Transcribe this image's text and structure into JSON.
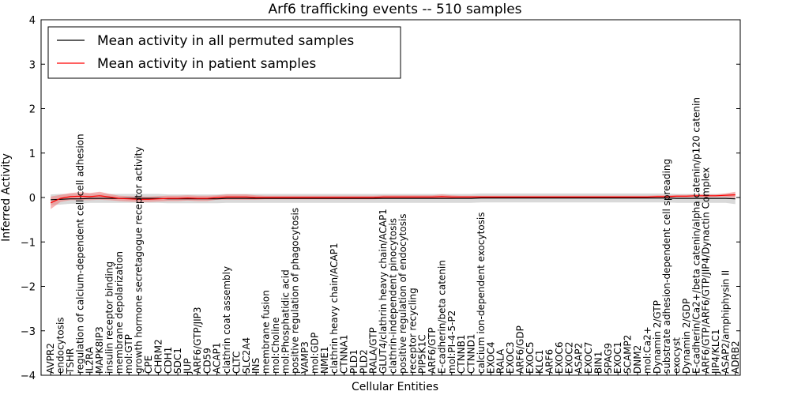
{
  "chart_data": {
    "type": "line",
    "title": "Arf6 trafficking events -- 510 samples",
    "xlabel": "Cellular Entities",
    "ylabel": "Inferred Activity",
    "ylim": [
      -4,
      4
    ],
    "yticks": [
      "−4",
      "−3",
      "−2",
      "−1",
      "0",
      "1",
      "2",
      "3",
      "4"
    ],
    "grid": false,
    "legend_position": "top-left",
    "categories": [
      "AVPR2",
      "endocytosis",
      "TSHR",
      "regulation of calcium-dependent cell-cell adhesion",
      "IL2RA",
      "MAPK8IP3",
      "insulin receptor binding",
      "membrane depolarization",
      "mol:GTP",
      "growth hormone secretagogue receptor activity",
      "CPE",
      "CHRM2",
      "CDH1",
      "SDC1",
      "JUP",
      "ARF6/GTP/JIP3",
      "CD59",
      "ACAP1",
      "clathrin coat assembly",
      "CLTC",
      "SLC2A4",
      "INS",
      "membrane fusion",
      "mol:Choline",
      "mol:Phosphatidic acid",
      "positive regulation of phagocytosis",
      "VAMP3",
      "mol:GDP",
      "NME1",
      "clathrin heavy chain/ACAP1",
      "CTNNA1",
      "PLD1",
      "PLD2",
      "RALA/GTP",
      "GLUT4/clathrin heavy chain/ACAP1",
      "clathrin-independent pinocytosis",
      "positive regulation of endocytosis",
      "receptor recycling",
      "PIP5K1C",
      "ARF6/GTP",
      "E-cadherin/beta catenin",
      "mol:PI-4-5-P2",
      "CTNNB1",
      "CTNND1",
      "calcium ion-dependent exocytosis",
      "EXOC4",
      "RALA",
      "EXOC3",
      "ARF6/GDP",
      "EXOC5",
      "KLC1",
      "ARF6",
      "EXOC6",
      "EXOC2",
      "ASAP2",
      "EXOC7",
      "BIN1",
      "SPAG9",
      "EXOC1",
      "SCAMP2",
      "DNM2",
      "mol:Ca2+",
      "Dynamin 2/GTP",
      "substrate adhesion-dependent cell spreading",
      "exocyst",
      "Dynamin 2/GDP",
      "E-cadherin/Ca2+/beta catenin/alpha catenin/p120 catenin",
      "ARF6/GTP/ARF6/GTP/JIP4/Dynactin Complex",
      "JIP4/KLC1",
      "ASAP2/amphiphysin II",
      "ADRB2"
    ],
    "series": [
      {
        "name": "Mean activity in all permuted samples",
        "color": "#000000",
        "band_color": "#cccccc",
        "values": [
          -0.05,
          -0.04,
          -0.03,
          -0.03,
          -0.02,
          -0.02,
          -0.02,
          -0.02,
          -0.02,
          -0.02,
          -0.02,
          -0.02,
          -0.03,
          -0.03,
          -0.03,
          -0.03,
          -0.03,
          -0.03,
          -0.02,
          -0.02,
          -0.02,
          -0.02,
          -0.02,
          -0.02,
          -0.02,
          -0.02,
          -0.02,
          -0.02,
          -0.02,
          -0.02,
          -0.02,
          -0.02,
          -0.02,
          -0.02,
          -0.02,
          -0.02,
          -0.02,
          -0.02,
          -0.02,
          -0.02,
          -0.02,
          -0.02,
          -0.02,
          -0.02,
          -0.01,
          -0.01,
          -0.01,
          -0.01,
          -0.01,
          -0.01,
          -0.01,
          -0.01,
          -0.01,
          -0.01,
          -0.01,
          -0.01,
          -0.01,
          -0.01,
          -0.01,
          -0.01,
          -0.01,
          -0.01,
          -0.01,
          -0.01,
          -0.02,
          -0.02,
          -0.02,
          -0.02,
          -0.02,
          -0.02,
          -0.03
        ],
        "band": [
          0.12,
          0.12,
          0.11,
          0.11,
          0.1,
          0.1,
          0.1,
          0.1,
          0.1,
          0.1,
          0.1,
          0.1,
          0.1,
          0.1,
          0.1,
          0.1,
          0.1,
          0.1,
          0.1,
          0.1,
          0.1,
          0.1,
          0.1,
          0.1,
          0.1,
          0.1,
          0.1,
          0.1,
          0.1,
          0.1,
          0.1,
          0.1,
          0.1,
          0.1,
          0.1,
          0.1,
          0.1,
          0.1,
          0.1,
          0.1,
          0.1,
          0.1,
          0.1,
          0.1,
          0.1,
          0.1,
          0.1,
          0.1,
          0.1,
          0.1,
          0.1,
          0.1,
          0.1,
          0.1,
          0.1,
          0.1,
          0.1,
          0.1,
          0.1,
          0.1,
          0.1,
          0.1,
          0.1,
          0.1,
          0.1,
          0.1,
          0.1,
          0.1,
          0.1,
          0.1,
          0.12
        ]
      },
      {
        "name": "Mean activity in patient samples",
        "color": "#ff0000",
        "band_color": "#f08080",
        "values": [
          -0.12,
          -0.02,
          0.02,
          0.03,
          0.02,
          0.04,
          0.01,
          -0.02,
          -0.03,
          -0.04,
          -0.04,
          -0.03,
          -0.02,
          -0.02,
          -0.01,
          -0.02,
          -0.02,
          0.0,
          0.01,
          0.01,
          0.01,
          0.0,
          0.0,
          0.0,
          0.0,
          0.0,
          0.0,
          0.0,
          0.0,
          0.0,
          0.0,
          0.0,
          0.0,
          0.0,
          0.01,
          0.01,
          0.01,
          0.01,
          0.01,
          0.01,
          0.02,
          0.01,
          0.01,
          0.01,
          0.01,
          0.01,
          0.01,
          0.01,
          0.01,
          0.01,
          0.01,
          0.01,
          0.01,
          0.01,
          0.01,
          0.01,
          0.01,
          0.01,
          0.01,
          0.01,
          0.01,
          0.01,
          0.02,
          0.02,
          0.03,
          0.03,
          0.04,
          0.04,
          0.04,
          0.05,
          0.06
        ],
        "band": [
          0.14,
          0.08,
          0.08,
          0.09,
          0.08,
          0.09,
          0.07,
          0.06,
          0.06,
          0.06,
          0.06,
          0.06,
          0.06,
          0.06,
          0.06,
          0.06,
          0.06,
          0.05,
          0.06,
          0.06,
          0.06,
          0.05,
          0.04,
          0.04,
          0.04,
          0.04,
          0.04,
          0.04,
          0.04,
          0.04,
          0.04,
          0.04,
          0.04,
          0.04,
          0.04,
          0.04,
          0.04,
          0.04,
          0.04,
          0.04,
          0.05,
          0.04,
          0.03,
          0.03,
          0.03,
          0.03,
          0.03,
          0.03,
          0.03,
          0.03,
          0.03,
          0.03,
          0.03,
          0.03,
          0.03,
          0.03,
          0.03,
          0.03,
          0.03,
          0.03,
          0.03,
          0.03,
          0.03,
          0.03,
          0.03,
          0.03,
          0.03,
          0.03,
          0.03,
          0.04,
          0.07
        ]
      }
    ]
  }
}
